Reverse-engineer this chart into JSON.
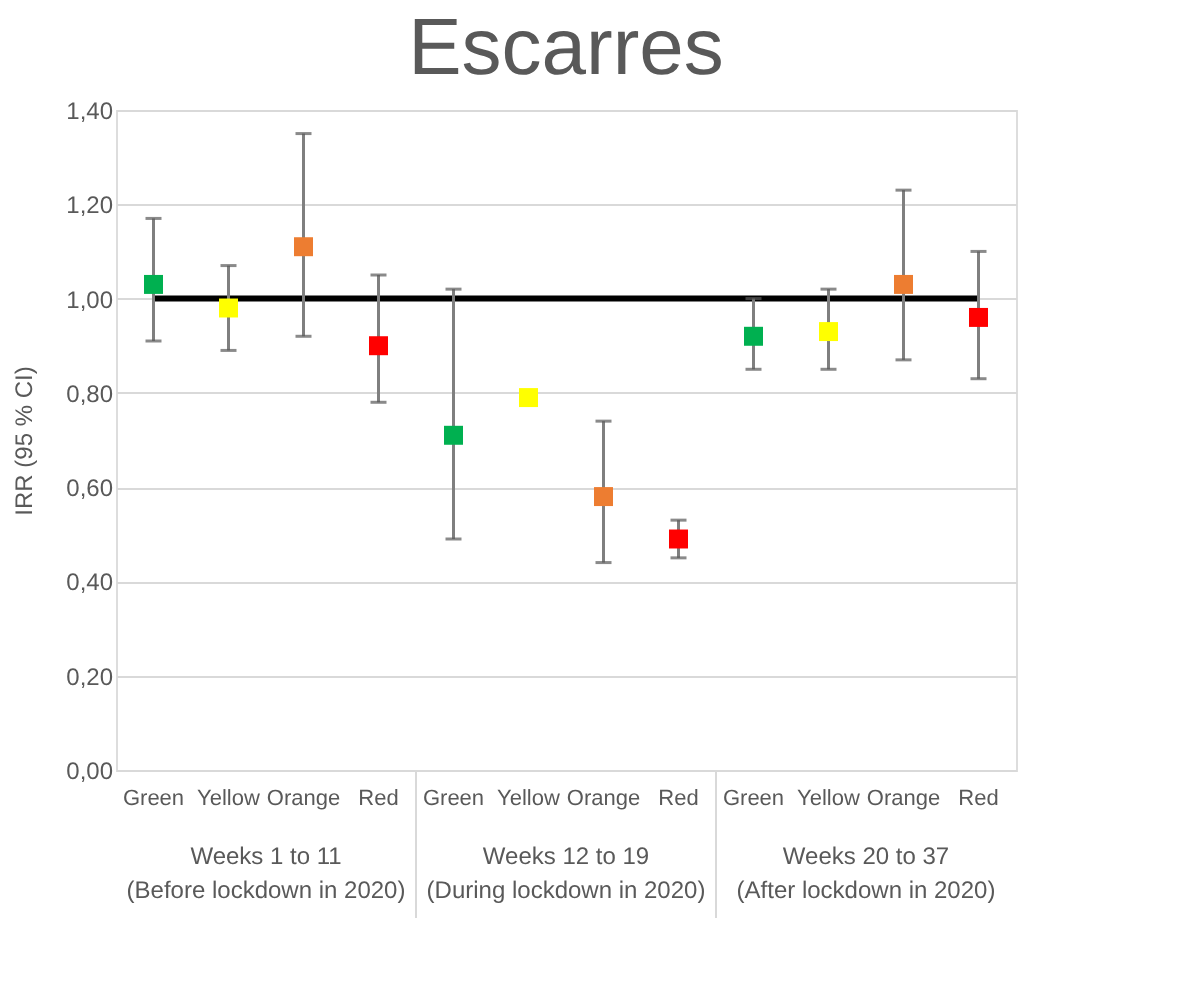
{
  "chart_data": {
    "type": "scatter",
    "title": "Escarres",
    "ylabel": "IRR (95 % CI)",
    "categories": [
      "Green",
      "Yellow",
      "Orange",
      "Red",
      "Green",
      "Yellow",
      "Orange",
      "Red",
      "Green",
      "Yellow",
      "Orange",
      "Red"
    ],
    "values": [
      1.03,
      0.98,
      1.11,
      0.9,
      0.71,
      0.79,
      0.58,
      0.49,
      0.92,
      0.93,
      1.03,
      0.96
    ],
    "errors": [
      [
        0.91,
        1.17
      ],
      [
        0.89,
        1.07
      ],
      [
        0.92,
        1.35
      ],
      [
        0.78,
        1.05
      ],
      [
        0.49,
        1.02
      ],
      null,
      [
        0.44,
        0.74
      ],
      [
        0.45,
        0.53
      ],
      [
        0.85,
        1.0
      ],
      [
        0.85,
        1.02
      ],
      [
        0.87,
        1.23
      ],
      [
        0.83,
        1.1
      ]
    ],
    "colors": [
      "#00b050",
      "#ffff00",
      "#ed7d31",
      "#ff0000",
      "#00b050",
      "#ffff00",
      "#ed7d31",
      "#ff0000",
      "#00b050",
      "#ffff00",
      "#ed7d31",
      "#ff0000"
    ],
    "ylim": [
      0,
      1.4
    ],
    "yticks": [
      {
        "value": 0,
        "label": "0,00"
      },
      {
        "value": 0.2,
        "label": "0,20"
      },
      {
        "value": 0.4,
        "label": "0,40"
      },
      {
        "value": 0.6,
        "label": "0,60"
      },
      {
        "value": 0.8,
        "label": "0,80"
      },
      {
        "value": 1.0,
        "label": "1,00"
      },
      {
        "value": 1.2,
        "label": "1,20"
      },
      {
        "value": 1.4,
        "label": "1,40"
      }
    ],
    "ref_lines": [
      {
        "axis": "y",
        "value": 1.0,
        "color": "#000000"
      }
    ],
    "annotations": [
      "Weeks 1 to 11\n(Before lockdown in 2020)",
      "Weeks 12 to 19\n(During lockdown in 2020)",
      "Weeks 20 to 37\n(After lockdown in 2020)"
    ],
    "grid": "y",
    "marker": "square"
  }
}
